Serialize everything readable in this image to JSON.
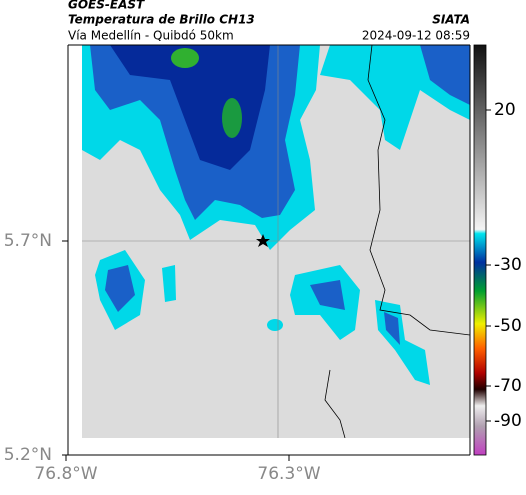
{
  "header": {
    "title": "GOES-EAST",
    "subtitle": "Temperatura de Brillo CH13",
    "region": "Vía Medellín - Quibdó 50km",
    "source": "SIATA",
    "timestamp": "2024-09-12 08:59"
  },
  "axes": {
    "y_labels": [
      "5.7°N",
      "5.2°N"
    ],
    "x_labels": [
      "76.8°W",
      "76.3°W"
    ]
  },
  "colorbar": {
    "tick_labels": [
      "20",
      "-30",
      "-50",
      "-70",
      "-90"
    ]
  }
}
